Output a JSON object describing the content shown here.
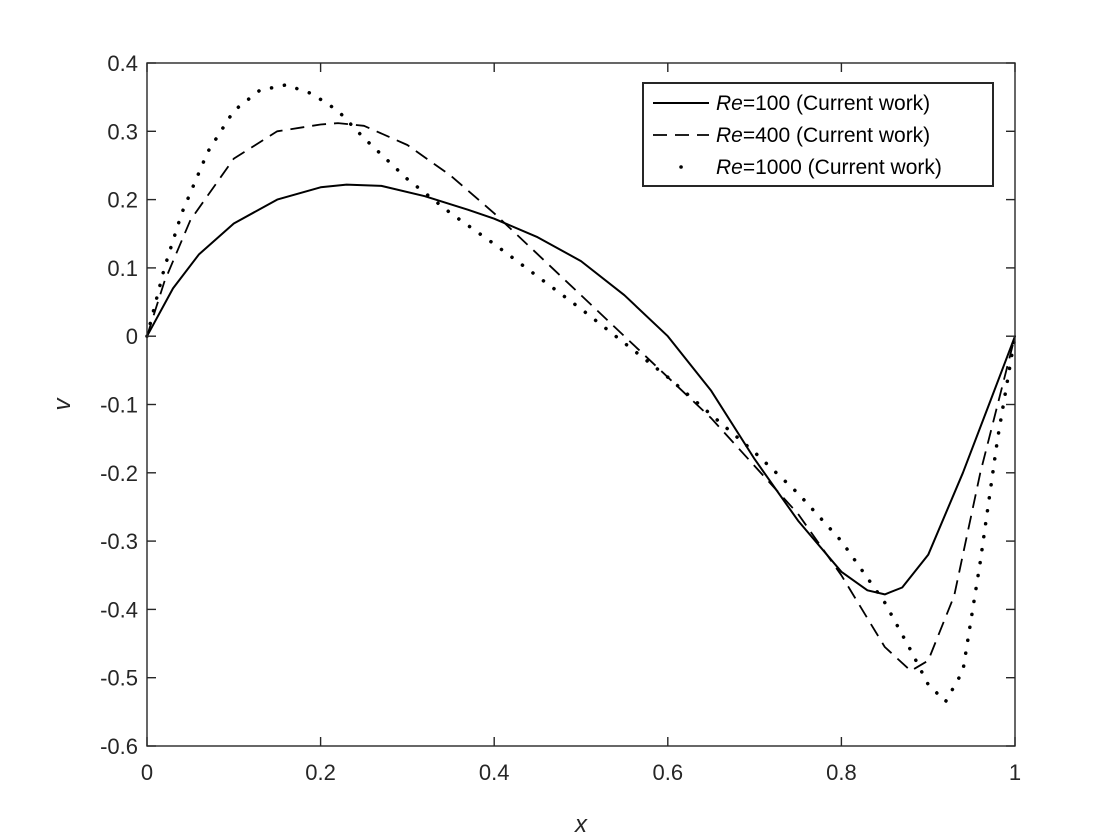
{
  "chart_data": {
    "type": "line",
    "title": "",
    "xlabel": "x",
    "ylabel": "v",
    "xlim": [
      0,
      1
    ],
    "ylim": [
      -0.6,
      0.4
    ],
    "xticks": [
      0,
      0.2,
      0.4,
      0.6,
      0.8,
      1
    ],
    "xtick_labels": [
      "0",
      "0.2",
      "0.4",
      "0.6",
      "0.8",
      "1"
    ],
    "yticks": [
      -0.6,
      -0.5,
      -0.4,
      -0.3,
      -0.2,
      -0.1,
      0,
      0.1,
      0.2,
      0.3,
      0.4
    ],
    "ytick_labels": [
      "-0.6",
      "-0.5",
      "-0.4",
      "-0.3",
      "-0.2",
      "-0.1",
      "0",
      "0.1",
      "0.2",
      "0.3",
      "0.4"
    ],
    "grid": false,
    "legend_position": "top-right",
    "series": [
      {
        "name": "Re=100   (Current work)",
        "legend_italic": "Re",
        "legend_rest": "=100   (Current work)",
        "style": "solid",
        "color": "#000000",
        "x": [
          0,
          0.03,
          0.06,
          0.1,
          0.15,
          0.2,
          0.23,
          0.27,
          0.32,
          0.37,
          0.4,
          0.45,
          0.5,
          0.55,
          0.6,
          0.65,
          0.7,
          0.75,
          0.8,
          0.83,
          0.85,
          0.87,
          0.9,
          0.94,
          0.97,
          1.0
        ],
        "y": [
          0,
          0.07,
          0.12,
          0.165,
          0.2,
          0.218,
          0.222,
          0.22,
          0.205,
          0.185,
          0.172,
          0.145,
          0.11,
          0.06,
          0.0,
          -0.08,
          -0.18,
          -0.27,
          -0.345,
          -0.372,
          -0.378,
          -0.368,
          -0.32,
          -0.2,
          -0.1,
          0
        ]
      },
      {
        "name": "Re=400   (Current work)",
        "legend_italic": "Re",
        "legend_rest": "=400   (Current work)",
        "style": "dashed",
        "color": "#000000",
        "x": [
          0,
          0.02,
          0.05,
          0.1,
          0.15,
          0.2,
          0.22,
          0.25,
          0.3,
          0.35,
          0.4,
          0.45,
          0.5,
          0.55,
          0.6,
          0.65,
          0.7,
          0.75,
          0.8,
          0.85,
          0.88,
          0.9,
          0.93,
          0.96,
          1.0
        ],
        "y": [
          0,
          0.08,
          0.17,
          0.26,
          0.3,
          0.31,
          0.312,
          0.308,
          0.28,
          0.235,
          0.18,
          0.12,
          0.06,
          0.0,
          -0.06,
          -0.12,
          -0.19,
          -0.26,
          -0.35,
          -0.455,
          -0.49,
          -0.475,
          -0.38,
          -0.2,
          0
        ]
      },
      {
        "name": "Re=1000 (Current work)",
        "legend_italic": "Re",
        "legend_rest": "=1000 (Current work)",
        "style": "dotted",
        "color": "#000000",
        "x": [
          0,
          0.01,
          0.02,
          0.04,
          0.07,
          0.1,
          0.13,
          0.16,
          0.19,
          0.22,
          0.25,
          0.3,
          0.35,
          0.4,
          0.5,
          0.6,
          0.7,
          0.75,
          0.8,
          0.85,
          0.88,
          0.9,
          0.92,
          0.94,
          0.96,
          0.98,
          1.0
        ],
        "y": [
          0,
          0.05,
          0.1,
          0.18,
          0.27,
          0.33,
          0.36,
          0.368,
          0.355,
          0.33,
          0.29,
          0.23,
          0.18,
          0.135,
          0.04,
          -0.06,
          -0.17,
          -0.23,
          -0.3,
          -0.39,
          -0.46,
          -0.51,
          -0.535,
          -0.49,
          -0.33,
          -0.15,
          0
        ]
      }
    ]
  }
}
